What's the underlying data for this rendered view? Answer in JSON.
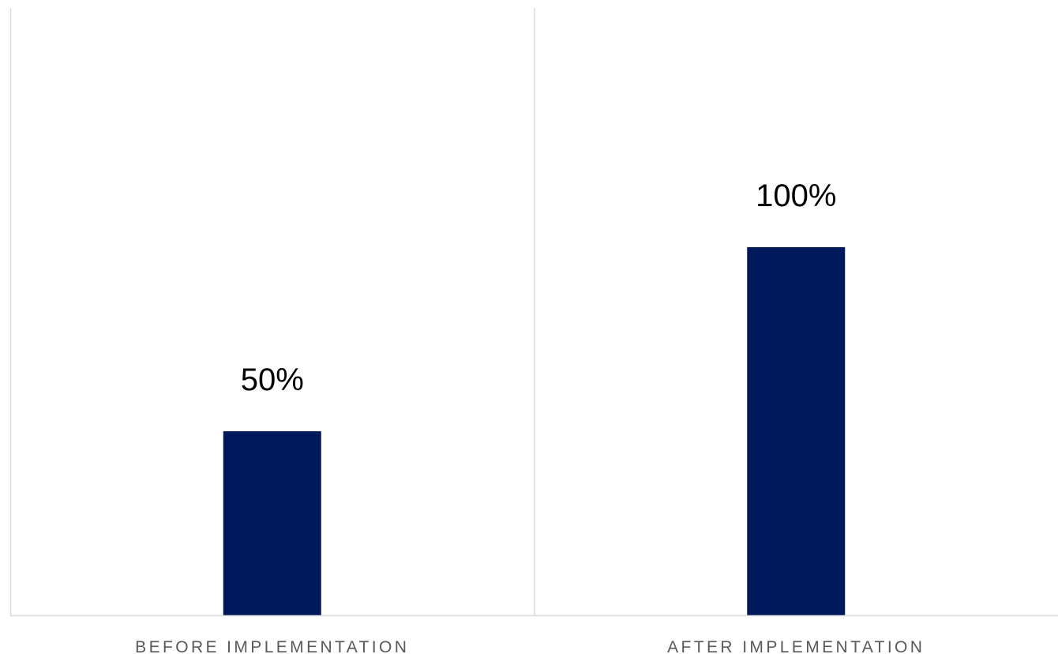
{
  "chart_data": {
    "type": "bar",
    "title": "",
    "xlabel": "",
    "ylabel": "",
    "categories": [
      "BEFORE IMPLEMENTATION",
      "AFTER IMPLEMENTATION"
    ],
    "values": [
      50,
      100
    ],
    "data_labels": [
      "50%",
      "100%"
    ],
    "ylim": [
      0,
      165
    ],
    "grid": false,
    "legend": "none",
    "bar_color": "#00195a",
    "axis_color": "#d9d9d9",
    "label_color": "#000000",
    "category_label_color": "#595959"
  }
}
